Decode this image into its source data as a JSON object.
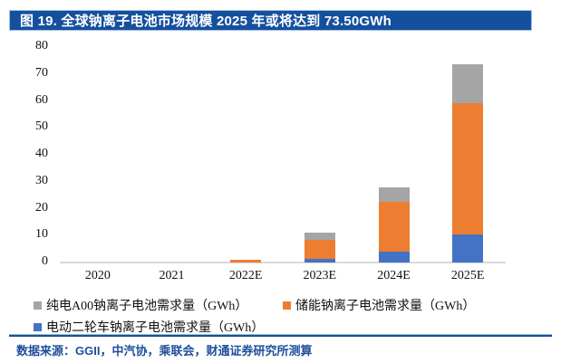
{
  "title": {
    "text": "图 19. 全球钠离子电池市场规模 2025 年或将达到 73.50GWh"
  },
  "chart_data": {
    "type": "bar",
    "stacked": true,
    "title": "全球钠离子电池市场规模 2025 年或将达到 73.50GWh",
    "categories": [
      "2020",
      "2021",
      "2022E",
      "2023E",
      "2024E",
      "2025E"
    ],
    "series": [
      {
        "name": "电动二轮车钠离子电池需求量（GWh）",
        "color": "#4472c4",
        "values": [
          0,
          0,
          0,
          1.2,
          4.0,
          10.5
        ]
      },
      {
        "name": "储能钠离子电池需求量（GWh）",
        "color": "#ed7d31",
        "values": [
          0,
          0,
          0.9,
          7.1,
          18.5,
          48.8
        ]
      },
      {
        "name": "纯电A00钠离子电池需求量（GWh）",
        "color": "#a5a5a5",
        "values": [
          0,
          0,
          0,
          2.7,
          5.5,
          14.2
        ]
      }
    ],
    "totals": [
      0,
      0,
      0.9,
      11.0,
      28.0,
      73.5
    ],
    "xlabel": "",
    "ylabel": "",
    "ylim": [
      0,
      80
    ],
    "ytick_step": 10,
    "yticks": [
      0,
      10,
      20,
      30,
      40,
      50,
      60,
      70,
      80
    ],
    "grid": false,
    "legend_position": "bottom"
  },
  "legend": {
    "rows": [
      [
        {
          "swatch": "#a5a5a5",
          "label": "纯电A00钠离子电池需求量（GWh）"
        },
        {
          "swatch": "#ed7d31",
          "label": "储能钠离子电池需求量（GWh）"
        }
      ],
      [
        {
          "swatch": "#4472c4",
          "label": "电动二轮车钠离子电池需求量（GWh）"
        }
      ]
    ]
  },
  "footer": {
    "source": "数据来源：GGII，中汽协，乘联会，财通证券研究所测算"
  },
  "colors": {
    "title_bar_bg": "#15509e",
    "title_bar_border": "#a3c0e2",
    "axis_line": "#d9d9d9",
    "source_blue": "#1f4e9c",
    "bar_blue": "#4472c4",
    "bar_orange": "#ed7d31",
    "bar_gray": "#a5a5a5"
  }
}
